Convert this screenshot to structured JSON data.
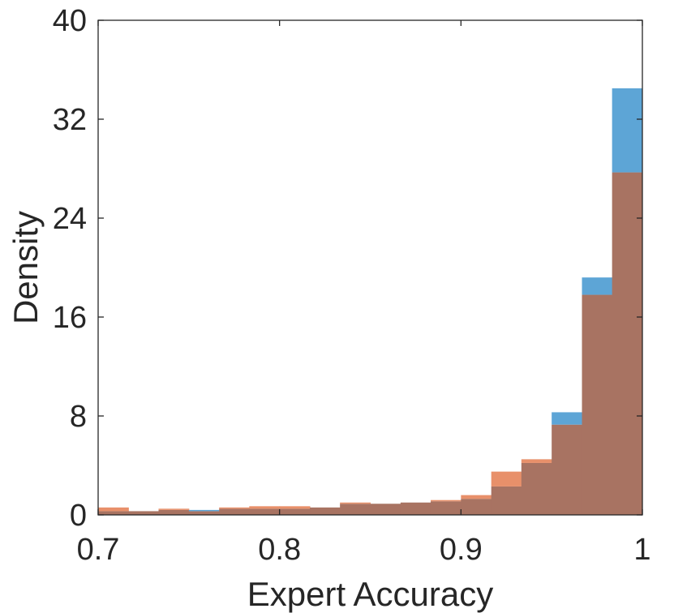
{
  "chart_data": {
    "type": "histogram",
    "xlabel": "Expert Accuracy",
    "ylabel": "Density",
    "xlim": [
      0.7,
      1.0
    ],
    "ylim": [
      0,
      40
    ],
    "xticks": [
      0.7,
      0.8,
      0.9,
      1.0
    ],
    "xtick_labels": [
      "0.7",
      "0.8",
      "0.9",
      "1"
    ],
    "yticks": [
      0,
      8,
      16,
      24,
      32,
      40
    ],
    "ytick_labels": [
      "0",
      "8",
      "16",
      "24",
      "32",
      "40"
    ],
    "grid": false,
    "legend": null,
    "overlap_color": "#A87362",
    "bin_edges": [
      0.7,
      0.7167,
      0.7333,
      0.75,
      0.7667,
      0.7833,
      0.8,
      0.8167,
      0.8333,
      0.85,
      0.8667,
      0.8833,
      0.9,
      0.9167,
      0.9333,
      0.95,
      0.9667,
      0.9833,
      1.0
    ],
    "series": [
      {
        "color": "#5DA5D6",
        "values": [
          0.3,
          0.3,
          0.4,
          0.4,
          0.5,
          0.5,
          0.5,
          0.6,
          0.9,
          0.9,
          1.0,
          1.1,
          1.3,
          2.3,
          4.2,
          8.3,
          19.2,
          34.5
        ]
      },
      {
        "color": "#E8906A",
        "values": [
          0.6,
          0.3,
          0.5,
          0.3,
          0.6,
          0.7,
          0.7,
          0.6,
          1.0,
          0.9,
          1.0,
          1.2,
          1.6,
          3.5,
          4.5,
          7.3,
          17.8,
          27.7
        ]
      }
    ]
  }
}
